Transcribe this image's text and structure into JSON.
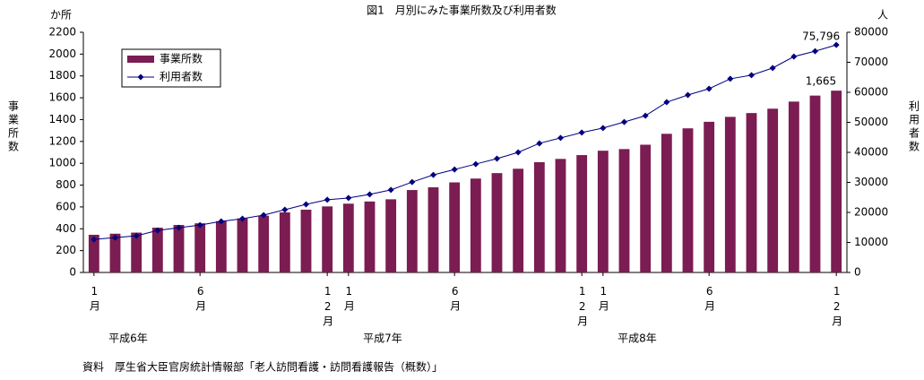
{
  "chart_data": {
    "type": "bar-line",
    "title": "図1　月別にみた事業所数及び利用者数",
    "y_unit": "か所",
    "y2_unit": "人",
    "y_label": "事業所数",
    "y2_label": "利用者数",
    "source": "資料　厚生省大臣官房統計情報部「老人訪問看護・訪問看護報告（概数）」",
    "categories": [
      "1月",
      null,
      null,
      null,
      null,
      "6月",
      null,
      null,
      null,
      null,
      null,
      "12月",
      "1月",
      null,
      null,
      null,
      null,
      "6月",
      null,
      null,
      null,
      null,
      null,
      "12月",
      "1月",
      null,
      null,
      null,
      null,
      "6月",
      null,
      null,
      null,
      null,
      null,
      "12月"
    ],
    "x_groups": [
      "平成6年",
      "平成7年",
      "平成8年"
    ],
    "series": [
      {
        "name": "事業所数",
        "type": "bar",
        "color": "#7b1c52",
        "values": [
          345,
          355,
          365,
          410,
          435,
          450,
          470,
          495,
          520,
          550,
          575,
          605,
          630,
          650,
          670,
          755,
          780,
          825,
          860,
          910,
          950,
          1010,
          1040,
          1075,
          1115,
          1130,
          1170,
          1270,
          1320,
          1380,
          1425,
          1460,
          1500,
          1565,
          1620,
          1665
        ],
        "value_labels": [
          null,
          null,
          null,
          null,
          null,
          null,
          null,
          null,
          null,
          null,
          null,
          null,
          null,
          null,
          null,
          null,
          null,
          null,
          null,
          null,
          null,
          null,
          null,
          null,
          null,
          null,
          null,
          null,
          null,
          null,
          null,
          null,
          null,
          null,
          null,
          "1,665"
        ]
      },
      {
        "name": "利用者数",
        "type": "line",
        "axis": "y2",
        "color": "#000080",
        "values": [
          11000,
          11600,
          12200,
          14000,
          14900,
          15800,
          17000,
          17900,
          19100,
          20900,
          22700,
          24200,
          24800,
          26000,
          27500,
          30100,
          32500,
          34300,
          36100,
          37900,
          40000,
          43000,
          44800,
          46600,
          48100,
          50100,
          52200,
          56700,
          59100,
          61200,
          64500,
          65700,
          68100,
          71900,
          73700,
          75796
        ],
        "value_labels": [
          null,
          null,
          null,
          null,
          null,
          null,
          null,
          null,
          null,
          null,
          null,
          null,
          null,
          null,
          null,
          null,
          null,
          null,
          null,
          null,
          null,
          null,
          null,
          null,
          null,
          null,
          null,
          null,
          null,
          null,
          null,
          null,
          null,
          null,
          null,
          "75,796"
        ]
      }
    ],
    "ylim": [
      0,
      2200
    ],
    "yticks": [
      0,
      200,
      400,
      600,
      800,
      1000,
      1200,
      1400,
      1600,
      1800,
      2000,
      2200
    ],
    "y2lim": [
      0,
      80000
    ],
    "y2ticks": [
      0,
      10000,
      20000,
      30000,
      40000,
      50000,
      60000,
      70000,
      80000
    ],
    "legend": "upper left",
    "grid": false
  }
}
